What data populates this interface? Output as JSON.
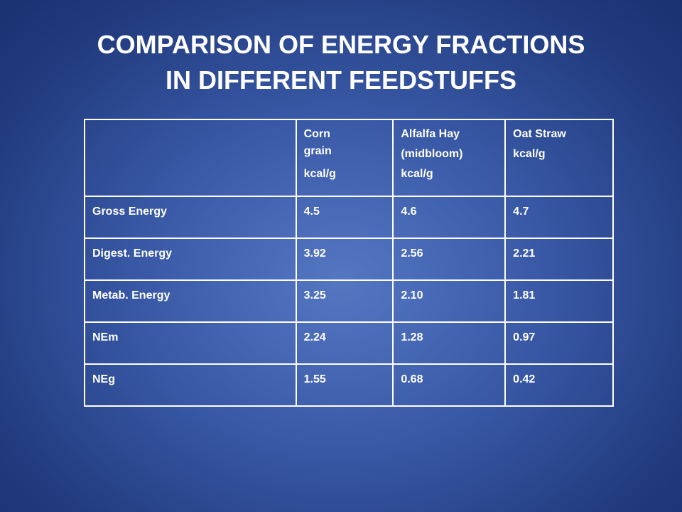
{
  "title": {
    "line1": "COMPARISON OF ENERGY FRACTIONS",
    "line2": "IN DIFFERENT FEEDSTUFFS"
  },
  "table": {
    "header": {
      "label": "",
      "corn": [
        "Corn",
        "grain",
        "kcal/g"
      ],
      "alfalfa": [
        "Alfalfa Hay",
        "(midbloom)",
        "kcal/g"
      ],
      "oat": [
        "Oat Straw",
        "kcal/g"
      ]
    },
    "rows": [
      {
        "label": "Gross Energy",
        "corn": "4.5",
        "alfalfa": "4.6",
        "oat": "4.7"
      },
      {
        "label": "Digest. Energy",
        "corn": "3.92",
        "alfalfa": "2.56",
        "oat": "2.21"
      },
      {
        "label": "Metab. Energy",
        "corn": "3.25",
        "alfalfa": "2.10",
        "oat": "1.81"
      },
      {
        "label": "NEm",
        "corn": "2.24",
        "alfalfa": "1.28",
        "oat": "0.97"
      },
      {
        "label": "NEg",
        "corn": "1.55",
        "alfalfa": "0.68",
        "oat": "0.42"
      }
    ]
  },
  "colors": {
    "background_center": "#5577c2",
    "background_edge": "#1a3170",
    "text": "#ffffff",
    "grid": "#ffffff"
  }
}
